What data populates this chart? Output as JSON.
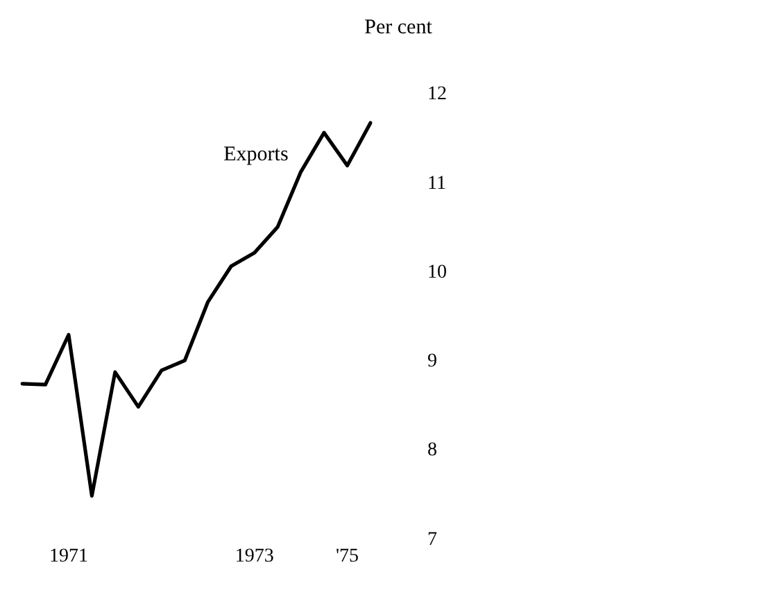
{
  "chart_data": {
    "type": "line",
    "ylabel": "Per cent",
    "categories": [
      null,
      null,
      "1971",
      null,
      null,
      null,
      null,
      null,
      null,
      null,
      "1973",
      null,
      null,
      null,
      "'75",
      null
    ],
    "series": [
      {
        "name": "Exports",
        "color": "#000000",
        "values": [
          8.75,
          8.74,
          9.3,
          7.49,
          8.88,
          8.49,
          8.9,
          9.01,
          9.67,
          10.07,
          10.22,
          10.51,
          11.13,
          11.57,
          11.2,
          11.68
        ]
      }
    ],
    "ylim": [
      7,
      12
    ],
    "yticks": [
      7,
      8,
      9,
      10,
      11,
      12
    ],
    "grid": false,
    "legend": false,
    "marker": "none",
    "line_style": "solid"
  }
}
